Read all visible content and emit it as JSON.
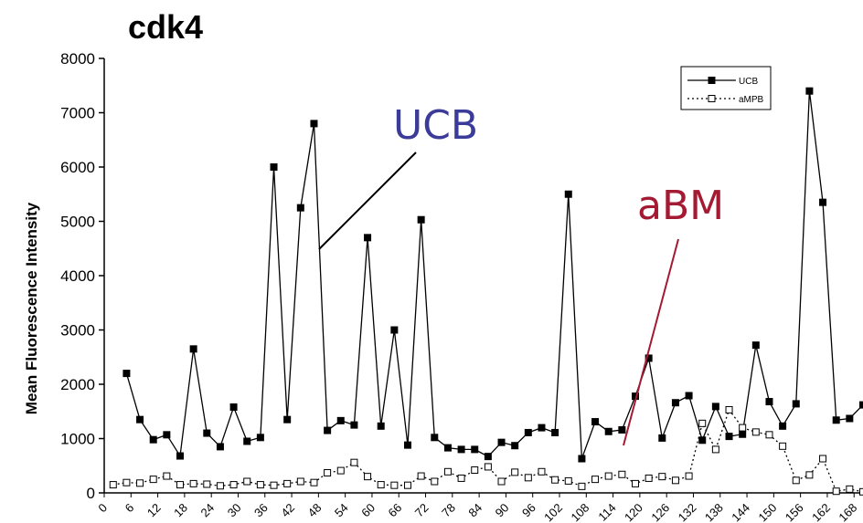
{
  "chart_data": {
    "type": "line",
    "title": "cdk4",
    "ylabel": "Mean Fluorescence Intensity",
    "xlabel": "",
    "ylim": [
      0,
      8000
    ],
    "yticks": [
      0,
      1000,
      2000,
      3000,
      4000,
      5000,
      6000,
      7000,
      8000
    ],
    "xlim": [
      0,
      170
    ],
    "xticks": [
      0,
      6,
      12,
      18,
      24,
      30,
      36,
      42,
      48,
      54,
      60,
      66,
      72,
      78,
      84,
      90,
      96,
      102,
      108,
      114,
      120,
      126,
      132,
      138,
      144,
      150,
      156,
      162,
      168
    ],
    "grid": false,
    "legend_position": "top-right",
    "series": [
      {
        "name": "UCB",
        "marker": "filled-square",
        "line": "solid",
        "color": "#000000",
        "x": [
          5,
          8,
          11,
          14,
          17,
          20,
          23,
          26,
          29,
          32,
          35,
          38,
          41,
          44,
          47,
          50,
          53,
          56,
          59,
          62,
          65,
          68,
          71,
          74,
          77,
          80,
          83,
          86,
          89,
          92,
          95,
          98,
          101,
          104,
          107,
          110,
          113,
          116,
          119,
          122,
          125,
          128,
          131,
          134,
          137,
          140,
          143,
          146,
          149,
          152,
          155,
          158,
          161,
          164,
          167,
          170
        ],
        "values": [
          2200,
          1350,
          980,
          1070,
          680,
          2650,
          1100,
          850,
          1580,
          950,
          1020,
          6000,
          1350,
          5250,
          6800,
          1150,
          1330,
          1250,
          4700,
          1230,
          3000,
          880,
          5030,
          1020,
          830,
          800,
          800,
          670,
          930,
          870,
          1110,
          1200,
          1110,
          5500,
          630,
          1310,
          1130,
          1160,
          1780,
          2480,
          1010,
          1660,
          1790,
          970,
          1590,
          1040,
          1080,
          2720,
          1680,
          1230,
          1640,
          7400,
          5350,
          1340,
          1370,
          1620
        ]
      },
      {
        "name": "aMPB",
        "marker": "open-square",
        "line": "dotted",
        "color": "#000000",
        "x": [
          2,
          5,
          8,
          11,
          14,
          17,
          20,
          23,
          26,
          29,
          32,
          35,
          38,
          41,
          44,
          47,
          50,
          53,
          56,
          59,
          62,
          65,
          68,
          71,
          74,
          77,
          80,
          83,
          86,
          89,
          92,
          95,
          98,
          101,
          104,
          107,
          110,
          113,
          116,
          119,
          122,
          125,
          128,
          131,
          134,
          137,
          140,
          143,
          146,
          149,
          152,
          155,
          158,
          161,
          164,
          167,
          170
        ],
        "values": [
          150,
          190,
          180,
          250,
          310,
          150,
          170,
          160,
          130,
          150,
          210,
          150,
          140,
          170,
          210,
          190,
          370,
          410,
          560,
          300,
          150,
          140,
          140,
          310,
          210,
          390,
          270,
          420,
          480,
          210,
          380,
          280,
          390,
          240,
          220,
          120,
          250,
          310,
          340,
          170,
          270,
          300,
          230,
          310,
          1280,
          800,
          1530,
          1200,
          1120,
          1070,
          860,
          230,
          330,
          630,
          30,
          70,
          20
        ]
      }
    ],
    "annotations": [
      {
        "text": "UCB",
        "color": "#3b3b99"
      },
      {
        "text": "aBM",
        "color": "#a31a32"
      }
    ]
  }
}
